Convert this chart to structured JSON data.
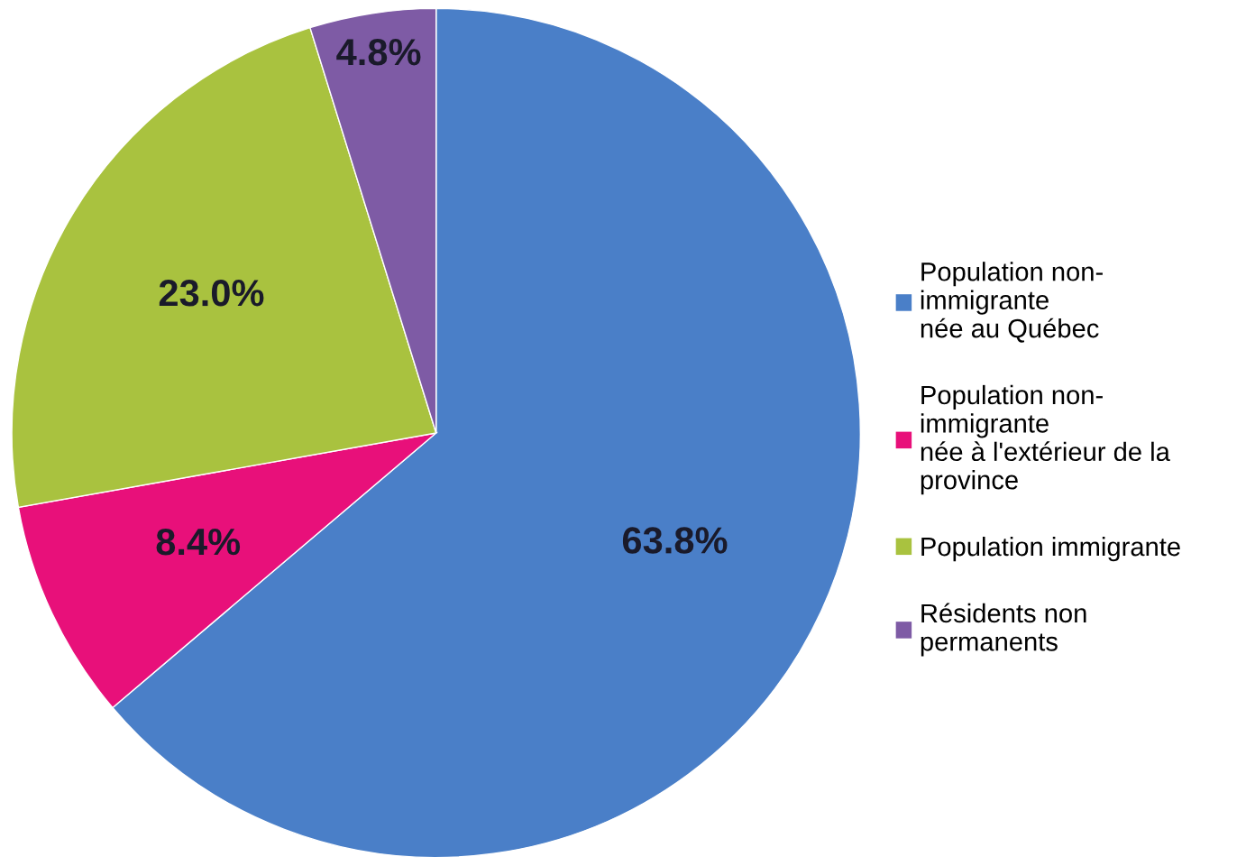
{
  "chart_data": {
    "type": "pie",
    "categories": [
      "Population non-\nimmigrante\nnée au Québec",
      "Population non-\nimmigrante\nnée à l'extérieur de la\nprovince",
      "Population immigrante",
      "Résidents non\npermanents"
    ],
    "values": [
      63.8,
      8.4,
      23.0,
      4.8
    ],
    "colors": [
      "#4a7fc8",
      "#e8107a",
      "#a9c23f",
      "#7e5ba5"
    ],
    "value_labels": [
      "63.8%",
      "8.4%",
      "23.0%",
      "4.8%"
    ],
    "legend": "right"
  }
}
